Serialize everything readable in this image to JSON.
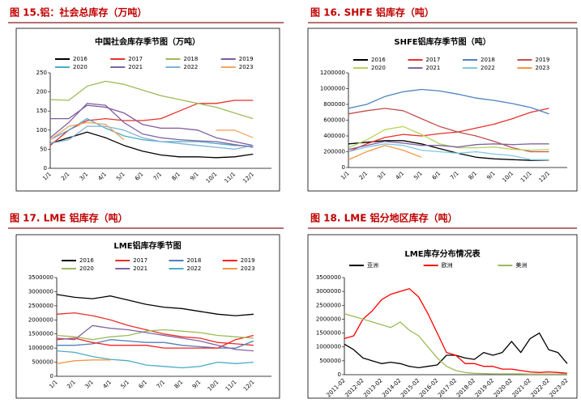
{
  "chart_data": [
    {
      "type": "line",
      "figure_title": "图 15.铝：社会总库存（万吨）",
      "title": "中国社会库存季节图（万吨）",
      "legend": "top",
      "categories": [
        "1/1",
        "2/1",
        "3/1",
        "4/1",
        "5/1",
        "6/1",
        "7/1",
        "8/1",
        "9/1",
        "10/1",
        "11/1",
        "12/1"
      ],
      "ylim": [
        0,
        250
      ],
      "yticks": [
        0,
        50,
        100,
        150,
        200,
        250
      ],
      "series": [
        {
          "name": "2016",
          "color": "#000000",
          "values": [
            65,
            80,
            95,
            80,
            60,
            45,
            35,
            30,
            30,
            28,
            30,
            37
          ]
        },
        {
          "name": "2017",
          "color": "#e8302a",
          "values": [
            60,
            100,
            125,
            130,
            125,
            125,
            130,
            150,
            170,
            170,
            178,
            178
          ]
        },
        {
          "name": "2018",
          "color": "#9bbb59",
          "values": [
            180,
            178,
            215,
            228,
            220,
            205,
            190,
            180,
            170,
            160,
            145,
            130
          ]
        },
        {
          "name": "2019",
          "color": "#7f5a9e",
          "values": [
            130,
            130,
            165,
            160,
            145,
            115,
            105,
            105,
            100,
            80,
            70,
            60
          ]
        },
        {
          "name": "2020",
          "color": "#4bacc6",
          "values": [
            75,
            100,
            130,
            105,
            85,
            75,
            70,
            70,
            70,
            65,
            60,
            58
          ]
        },
        {
          "name": "2021",
          "color": "#8064a2",
          "values": [
            80,
            120,
            170,
            165,
            120,
            90,
            80,
            75,
            72,
            70,
            62,
            55
          ]
        },
        {
          "name": "2022",
          "color": "#7fb0d8",
          "values": [
            65,
            75,
            110,
            110,
            100,
            80,
            70,
            65,
            60,
            55,
            50,
            60
          ]
        },
        {
          "name": "2023",
          "color": "#f4a460",
          "values": [
            75,
            110,
            120,
            115,
            75,
            null,
            null,
            null,
            null,
            100,
            100,
            80
          ]
        }
      ]
    },
    {
      "type": "line",
      "figure_title": "图 16. SHFE 铝库存（吨）",
      "title": "SHFE铝库存季节图（吨）",
      "legend": "top",
      "categories": [
        "1/1",
        "2/1",
        "3/1",
        "4/1",
        "5/1",
        "6/1",
        "7/1",
        "8/1",
        "9/1",
        "10/1",
        "11/1",
        "12/1"
      ],
      "ylim": [
        0,
        1200000
      ],
      "yticks": [
        0,
        200000,
        400000,
        600000,
        800000,
        1000000,
        1200000
      ],
      "series": [
        {
          "name": "2016",
          "color": "#000000",
          "values": [
            300000,
            320000,
            340000,
            340000,
            300000,
            240000,
            180000,
            130000,
            110000,
            100000,
            90000,
            95000
          ]
        },
        {
          "name": "2017",
          "color": "#e8302a",
          "values": [
            200000,
            300000,
            380000,
            420000,
            400000,
            430000,
            450000,
            500000,
            550000,
            620000,
            700000,
            750000
          ]
        },
        {
          "name": "2018",
          "color": "#4f81bd",
          "values": [
            750000,
            800000,
            900000,
            960000,
            990000,
            970000,
            930000,
            880000,
            850000,
            810000,
            760000,
            680000
          ]
        },
        {
          "name": "2019",
          "color": "#c0504d",
          "values": [
            680000,
            720000,
            750000,
            720000,
            620000,
            520000,
            450000,
            400000,
            330000,
            250000,
            200000,
            200000
          ]
        },
        {
          "name": "2020",
          "color": "#b5d55a",
          "values": [
            250000,
            350000,
            480000,
            520000,
            420000,
            300000,
            250000,
            250000,
            260000,
            230000,
            220000,
            230000
          ]
        },
        {
          "name": "2021",
          "color": "#8064a2",
          "values": [
            230000,
            280000,
            330000,
            310000,
            280000,
            280000,
            260000,
            290000,
            300000,
            290000,
            300000,
            300000
          ]
        },
        {
          "name": "2022",
          "color": "#7fc8e0",
          "values": [
            200000,
            260000,
            300000,
            280000,
            220000,
            200000,
            180000,
            200000,
            170000,
            150000,
            100000,
            100000
          ]
        },
        {
          "name": "2023",
          "color": "#f79646",
          "values": [
            100000,
            200000,
            280000,
            220000,
            130000,
            null,
            null,
            null,
            null,
            null,
            null,
            null
          ]
        }
      ]
    },
    {
      "type": "line",
      "figure_title": "图 17. LME 铝库存（吨）",
      "title": "LME铝库存季节图",
      "legend": "top",
      "categories": [
        "1/1",
        "2/1",
        "3/1",
        "4/1",
        "5/1",
        "6/1",
        "7/1",
        "8/1",
        "9/1",
        "10/1",
        "11/1",
        "12/1"
      ],
      "ylim": [
        0,
        3500000
      ],
      "yticks": [
        0,
        500000,
        1000000,
        1500000,
        2000000,
        2500000,
        3000000,
        3500000
      ],
      "series": [
        {
          "name": "2016",
          "color": "#000000",
          "values": [
            2900000,
            2800000,
            2750000,
            2850000,
            2700000,
            2550000,
            2450000,
            2400000,
            2300000,
            2200000,
            2150000,
            2200000
          ]
        },
        {
          "name": "2017",
          "color": "#e8302a",
          "values": [
            2200000,
            2250000,
            2150000,
            2000000,
            1800000,
            1650000,
            1500000,
            1400000,
            1350000,
            1200000,
            1150000,
            1100000
          ]
        },
        {
          "name": "2018",
          "color": "#4f81bd",
          "values": [
            1100000,
            1100000,
            1150000,
            1300000,
            1250000,
            1200000,
            1200000,
            1100000,
            1050000,
            1000000,
            1000000,
            1250000
          ]
        },
        {
          "name": "2019",
          "color": "#ff2020",
          "values": [
            1300000,
            1350000,
            1200000,
            1100000,
            1100000,
            1100000,
            1000000,
            1000000,
            1000000,
            1000000,
            1300000,
            1450000
          ]
        },
        {
          "name": "2020",
          "color": "#9bbb59",
          "values": [
            1450000,
            1400000,
            1300000,
            1400000,
            1450000,
            1600000,
            1650000,
            1600000,
            1550000,
            1450000,
            1400000,
            1350000
          ]
        },
        {
          "name": "2021",
          "color": "#8064a2",
          "values": [
            1350000,
            1300000,
            1800000,
            1700000,
            1650000,
            1550000,
            1450000,
            1350000,
            1250000,
            1100000,
            950000,
            900000
          ]
        },
        {
          "name": "2022",
          "color": "#4bacc6",
          "values": [
            900000,
            850000,
            700000,
            600000,
            550000,
            400000,
            350000,
            300000,
            350000,
            500000,
            450000,
            500000
          ]
        },
        {
          "name": "2023",
          "color": "#f79646",
          "values": [
            450000,
            550000,
            580000,
            580000,
            null,
            null,
            null,
            null,
            null,
            null,
            null,
            null
          ]
        }
      ]
    },
    {
      "type": "line",
      "figure_title": "图 18. LME 铝分地区库存（吨）",
      "title": "LME库存分布情况表",
      "legend": "top",
      "categories": [
        "2011-02",
        null,
        "2012-02",
        null,
        "2013-02",
        null,
        "2014-02",
        null,
        "2015-02",
        null,
        "2016-02",
        null,
        "2017-02",
        null,
        "2018-02",
        null,
        "2019-02",
        null,
        "2020-02",
        null,
        "2021-02",
        null,
        "2022-02",
        null,
        "2023-02"
      ],
      "ylim": [
        0,
        3500000
      ],
      "yticks": [
        0,
        500000,
        1000000,
        1500000,
        2000000,
        2500000,
        3000000,
        3500000
      ],
      "series": [
        {
          "name": "亚洲",
          "color": "#000000",
          "values": [
            1100000,
            900000,
            600000,
            500000,
            400000,
            450000,
            400000,
            300000,
            250000,
            300000,
            350000,
            700000,
            700000,
            600000,
            550000,
            800000,
            700000,
            800000,
            1200000,
            800000,
            1300000,
            1500000,
            900000,
            800000,
            400000
          ]
        },
        {
          "name": "欧洲",
          "color": "#ff0000",
          "values": [
            1300000,
            1400000,
            2000000,
            2300000,
            2700000,
            2900000,
            3000000,
            3100000,
            2800000,
            2200000,
            1500000,
            800000,
            700000,
            400000,
            400000,
            300000,
            300000,
            200000,
            200000,
            150000,
            100000,
            80000,
            100000,
            80000,
            50000
          ]
        },
        {
          "name": "美洲",
          "color": "#9bbb59",
          "values": [
            2200000,
            2100000,
            2000000,
            1900000,
            1800000,
            1700000,
            1900000,
            1600000,
            1400000,
            1000000,
            600000,
            300000,
            150000,
            80000,
            50000,
            40000,
            30000,
            30000,
            30000,
            30000,
            20000,
            20000,
            20000,
            20000,
            20000
          ]
        }
      ]
    }
  ]
}
